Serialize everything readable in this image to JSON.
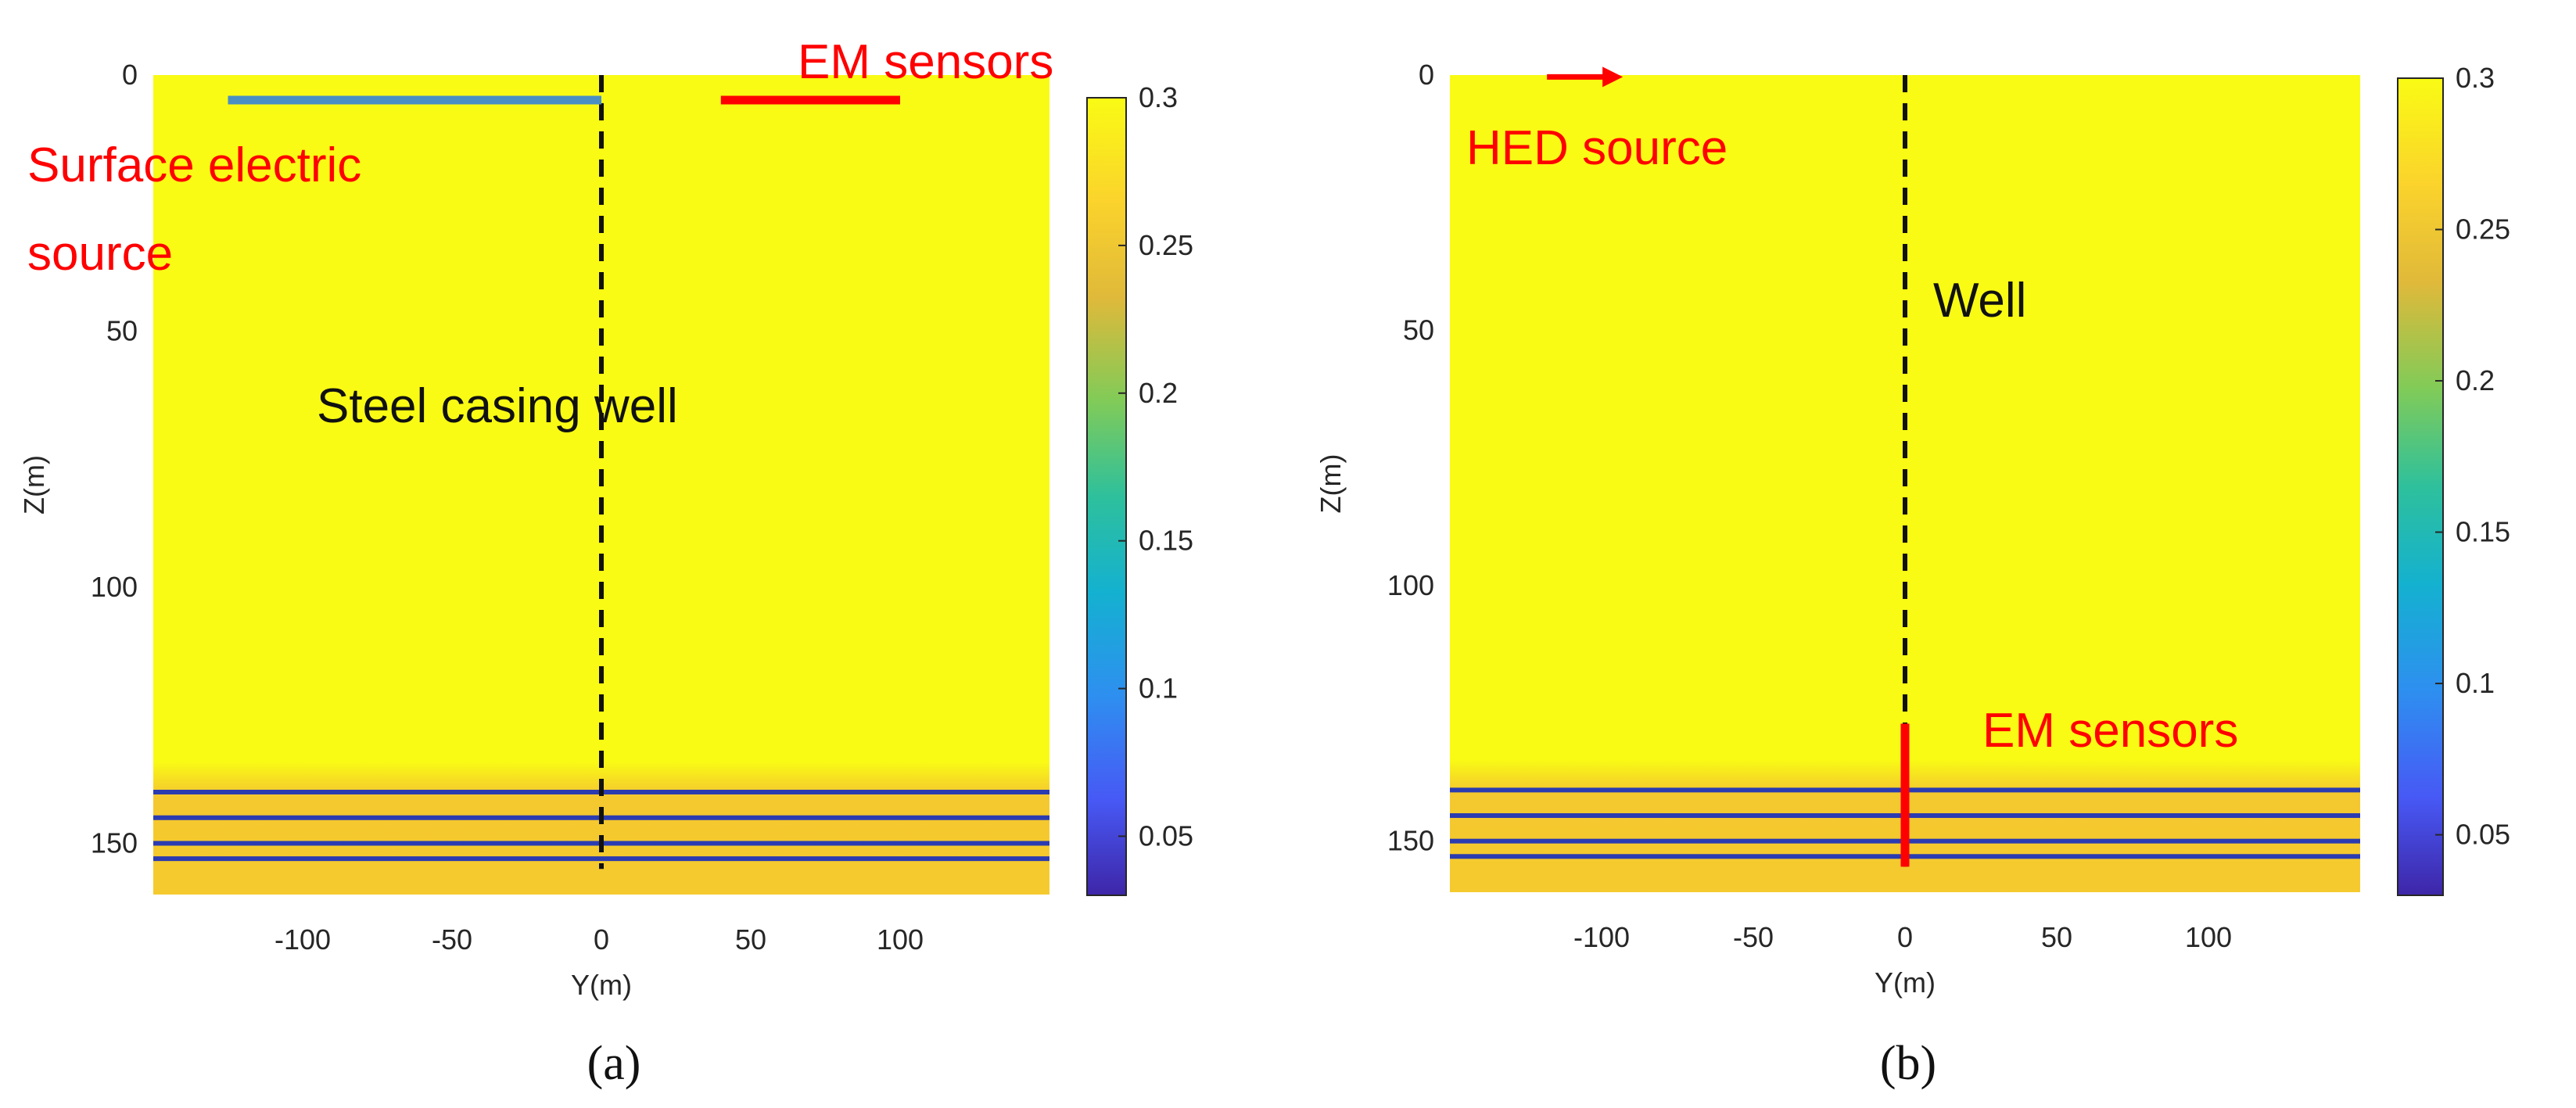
{
  "colormap": {
    "stops": [
      {
        "t": 0.0,
        "color": "#3e26a8"
      },
      {
        "t": 0.12,
        "color": "#4759f5"
      },
      {
        "t": 0.25,
        "color": "#2e8ff0"
      },
      {
        "t": 0.38,
        "color": "#14b1d0"
      },
      {
        "t": 0.5,
        "color": "#2ec09c"
      },
      {
        "t": 0.62,
        "color": "#81cb58"
      },
      {
        "t": 0.75,
        "color": "#e0b93a"
      },
      {
        "t": 0.87,
        "color": "#fbd32c"
      },
      {
        "t": 1.0,
        "color": "#f9fb14"
      }
    ]
  },
  "chart_data": [
    {
      "type": "heatmap",
      "panel_label": "a",
      "title": "",
      "xlabel": "Y(m)",
      "ylabel": "Z(m)",
      "xlim": [
        -150,
        150
      ],
      "ylim": [
        0,
        160
      ],
      "y_reversed": true,
      "xticks": [
        -100,
        -50,
        0,
        50,
        100
      ],
      "yticks": [
        0,
        50,
        100,
        150
      ],
      "colorbar": {
        "min": 0.03,
        "max": 0.3,
        "ticks": [
          0.05,
          0.1,
          0.15,
          0.2,
          0.25,
          0.3
        ]
      },
      "background_value": 0.3,
      "layers": [
        {
          "z": 140,
          "value": 0.03
        },
        {
          "z": 145,
          "value": 0.03
        },
        {
          "z": 150,
          "value": 0.03
        },
        {
          "z": 153,
          "value": 0.03
        }
      ],
      "well": {
        "y": 0,
        "z_top": 0,
        "z_bottom": 155
      },
      "surface_source_line": {
        "y_start": -125,
        "y_end": 0,
        "z": 0
      },
      "sensor_line": {
        "y_start": 40,
        "y_end": 100,
        "z": 0
      },
      "annotations": {
        "sensors": "EM sensors",
        "source_line1": "Surface electric",
        "source_line2": "source",
        "well": "Steel casing well"
      }
    },
    {
      "type": "heatmap",
      "panel_label": "b",
      "title": "",
      "xlabel": "Y(m)",
      "ylabel": "Z(m)",
      "xlim": [
        -150,
        150
      ],
      "ylim": [
        0,
        160
      ],
      "y_reversed": true,
      "xticks": [
        -100,
        -50,
        0,
        50,
        100
      ],
      "yticks": [
        0,
        50,
        100,
        150
      ],
      "colorbar": {
        "min": 0.03,
        "max": 0.3,
        "ticks": [
          0.05,
          0.1,
          0.15,
          0.2,
          0.25,
          0.3
        ]
      },
      "background_value": 0.3,
      "layers": [
        {
          "z": 140,
          "value": 0.03
        },
        {
          "z": 145,
          "value": 0.03
        },
        {
          "z": 150,
          "value": 0.03
        },
        {
          "z": 153,
          "value": 0.03
        }
      ],
      "well": {
        "y": 0,
        "z_top": 0,
        "z_bottom": 155
      },
      "sensor_segment": {
        "y": 0,
        "z_start": 127,
        "z_end": 155
      },
      "source_arrow": {
        "y_start": -118,
        "y_end": -93,
        "z": -3
      },
      "annotations": {
        "source": "HED source",
        "well": "Well",
        "sensors": "EM sensors"
      }
    }
  ],
  "captions": {
    "a": "(a)",
    "b": "(b)"
  },
  "colors": {
    "background": "#f9fb14",
    "layer": "#2b3bb0",
    "halo": "#f4c232",
    "well": "#111111",
    "sensors": "#ff0000",
    "surface_source": "#4a8fc4"
  }
}
